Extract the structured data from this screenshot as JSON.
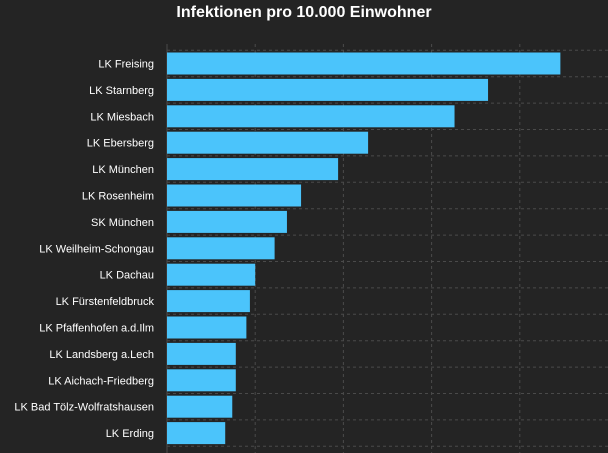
{
  "chart_data": {
    "type": "bar",
    "orientation": "horizontal",
    "title": "Infektionen pro 10.000 Einwohner",
    "xlabel": "",
    "ylabel": "",
    "categories": [
      "LK Freising",
      "LK Starnberg",
      "LK Miesbach",
      "LK Ebersberg",
      "LK München",
      "LK Rosenheim",
      "SK München",
      "LK Weilheim-Schongau",
      "LK Dachau",
      "LK Fürstenfeldbruck",
      "LK Pfaffenhofen a.d.Ilm",
      "LK Landsberg a.Lech",
      "LK Aichach-Friedberg",
      "LK Bad Tölz-Wolfratshausen",
      "LK Erding"
    ],
    "values": [
      22.3,
      18.2,
      16.3,
      11.4,
      9.7,
      7.6,
      6.8,
      6.1,
      5.0,
      4.7,
      4.5,
      3.9,
      3.9,
      3.7,
      3.3
    ],
    "xlim": [
      0,
      25
    ],
    "grid": true,
    "colors": {
      "bar": "#4bc4fb",
      "background": "#242424",
      "grid": "#4a4a4a",
      "text": "#ffffff"
    }
  }
}
